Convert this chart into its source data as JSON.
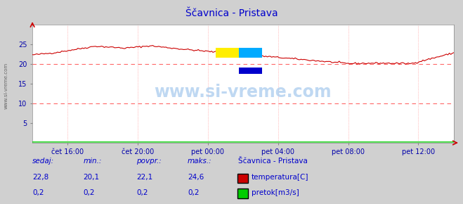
{
  "title": "Ščavnica - Pristava",
  "title_color": "#0000cc",
  "bg_color": "#d0d0d0",
  "plot_bg_color": "#ffffff",
  "watermark": "www.si-vreme.com",
  "xlabel_color": "#0000aa",
  "ylabel_color": "#0000aa",
  "x_ticks_labels": [
    "čet 16:00",
    "čet 20:00",
    "pet 00:00",
    "pet 04:00",
    "pet 08:00",
    "pet 12:00"
  ],
  "x_ticks_pos": [
    0.083,
    0.25,
    0.416,
    0.583,
    0.75,
    0.916
  ],
  "ylim": [
    0,
    30
  ],
  "temp_color": "#cc0000",
  "flow_color": "#00cc00",
  "grid_color_v": "#ff8888",
  "dashed_line_color": "#ff6666",
  "legend_station": "Ščavnica - Pristava",
  "legend_temp_label": "temperatura[C]",
  "legend_flow_label": "pretok[m3/s]",
  "stats_headers": [
    "sedaj:",
    "min.:",
    "povpr.:",
    "maks.:"
  ],
  "stats_temp": [
    "22,8",
    "20,1",
    "22,1",
    "24,6"
  ],
  "stats_flow": [
    "0,2",
    "0,2",
    "0,2",
    "0,2"
  ],
  "stat_color": "#0000cc",
  "sidebar_text": "www.si-vreme.com",
  "sidebar_color": "#666666"
}
